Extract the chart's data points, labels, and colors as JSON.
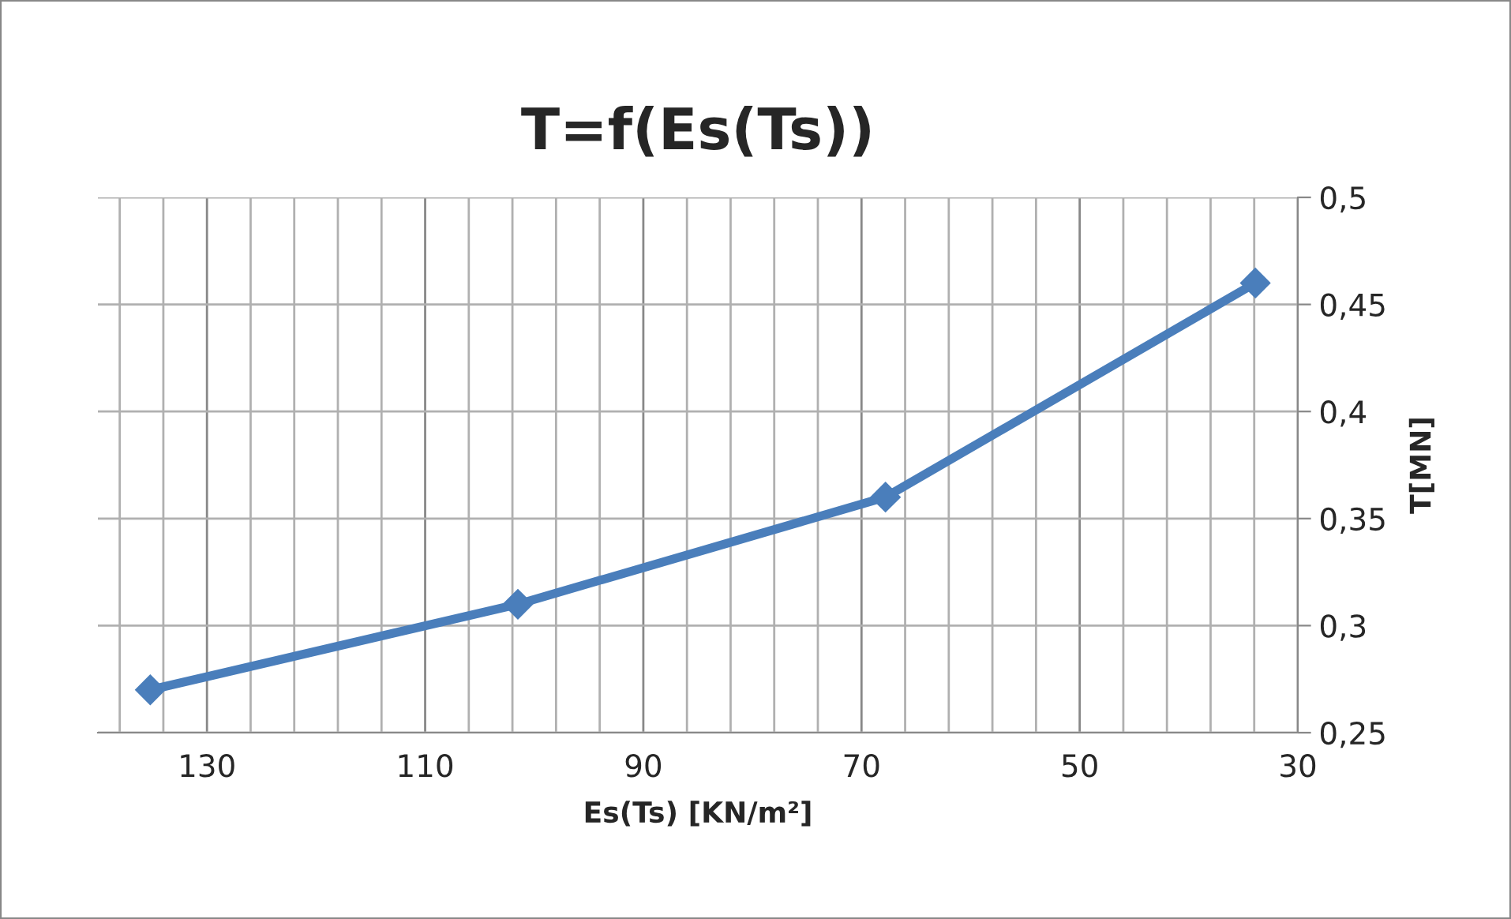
{
  "chart_data": {
    "type": "line",
    "title": "T=f(Es(Ts))",
    "xlabel": "Es(Ts) [KN/m²]",
    "ylabel": "T[MN]",
    "x": [
      135.2,
      101.5,
      67.8,
      33.9
    ],
    "series": [
      {
        "color": "#4a7ebb",
        "values": [
          0.27,
          0.31,
          0.36,
          0.46
        ]
      }
    ],
    "marker": "diamond",
    "line_style": "solid",
    "grid": true,
    "xlim": [
      140,
      30
    ],
    "xticks": [
      {
        "value": 138,
        "label": null
      },
      {
        "value": 134,
        "label": null
      },
      130,
      {
        "value": 126,
        "label": null
      },
      {
        "value": 122,
        "label": null
      },
      {
        "value": 118,
        "label": null
      },
      {
        "value": 114,
        "label": null
      },
      110,
      {
        "value": 106,
        "label": null
      },
      {
        "value": 102,
        "label": null
      },
      {
        "value": 98,
        "label": null
      },
      {
        "value": 94,
        "label": null
      },
      90,
      {
        "value": 86,
        "label": null
      },
      {
        "value": 82,
        "label": null
      },
      {
        "value": 78,
        "label": null
      },
      {
        "value": 74,
        "label": null
      },
      70,
      {
        "value": 66,
        "label": null
      },
      {
        "value": 62,
        "label": null
      },
      {
        "value": 58,
        "label": null
      },
      {
        "value": 54,
        "label": null
      },
      50,
      {
        "value": 46,
        "label": null
      },
      {
        "value": 42,
        "label": null
      },
      {
        "value": 38,
        "label": null
      },
      {
        "value": 34,
        "label": null
      },
      30
    ],
    "ylim": [
      0.25,
      0.5
    ],
    "yticks": [
      {
        "value": 0.25,
        "label": "0,25"
      },
      {
        "value": 0.3,
        "label": "0,3"
      },
      {
        "value": 0.35,
        "label": "0,35"
      },
      {
        "value": 0.4,
        "label": "0,4"
      },
      {
        "value": 0.45,
        "label": "0,45"
      },
      {
        "value": 0.5,
        "label": "0,5"
      }
    ]
  }
}
